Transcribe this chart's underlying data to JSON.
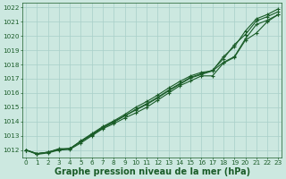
{
  "title": "Graphe pression niveau de la mer (hPa)",
  "bg_color": "#cce8e0",
  "grid_color": "#a8cfc8",
  "line_color": "#1a5c28",
  "x_values": [
    0,
    1,
    2,
    3,
    4,
    5,
    6,
    7,
    8,
    9,
    10,
    11,
    12,
    13,
    14,
    15,
    16,
    17,
    18,
    19,
    20,
    21,
    22,
    23
  ],
  "series": [
    [
      1012.0,
      1011.75,
      1011.85,
      1012.05,
      1012.1,
      1012.6,
      1013.1,
      1013.6,
      1014.0,
      1014.4,
      1014.8,
      1015.2,
      1015.65,
      1016.15,
      1016.6,
      1017.05,
      1017.3,
      1017.55,
      1018.15,
      1018.55,
      1019.8,
      1020.8,
      1021.1,
      1021.5
    ],
    [
      1012.0,
      1011.75,
      1011.85,
      1012.05,
      1012.1,
      1012.6,
      1013.05,
      1013.55,
      1013.95,
      1014.4,
      1014.85,
      1015.25,
      1015.7,
      1016.2,
      1016.65,
      1017.1,
      1017.35,
      1017.6,
      1018.4,
      1019.4,
      1020.1,
      1021.05,
      1021.35,
      1021.7
    ],
    [
      1012.0,
      1011.75,
      1011.85,
      1012.1,
      1012.1,
      1012.65,
      1013.15,
      1013.65,
      1014.05,
      1014.5,
      1015.0,
      1015.4,
      1015.85,
      1016.35,
      1016.8,
      1017.2,
      1017.45,
      1017.55,
      1018.55,
      1019.25,
      1020.35,
      1021.2,
      1021.5,
      1021.9
    ],
    [
      1012.0,
      1011.7,
      1011.8,
      1012.0,
      1012.05,
      1012.5,
      1013.0,
      1013.5,
      1013.85,
      1014.25,
      1014.6,
      1015.0,
      1015.5,
      1016.0,
      1016.5,
      1016.85,
      1017.2,
      1017.2,
      1018.1,
      1018.5,
      1019.7,
      1020.2,
      1021.0,
      1021.5
    ]
  ],
  "ylim": [
    1011.5,
    1022.3
  ],
  "yticks": [
    1012,
    1013,
    1014,
    1015,
    1016,
    1017,
    1018,
    1019,
    1020,
    1021,
    1022
  ],
  "xlim": [
    -0.3,
    23.3
  ],
  "xticks": [
    0,
    1,
    2,
    3,
    4,
    5,
    6,
    7,
    8,
    9,
    10,
    11,
    12,
    13,
    14,
    15,
    16,
    17,
    18,
    19,
    20,
    21,
    22,
    23
  ],
  "marker": "+",
  "linewidth": 0.8,
  "markersize": 3.5,
  "markeredgewidth": 0.8,
  "title_fontsize": 7.0,
  "tick_fontsize": 5.2,
  "fig_width": 3.2,
  "fig_height": 2.0,
  "dpi": 100
}
